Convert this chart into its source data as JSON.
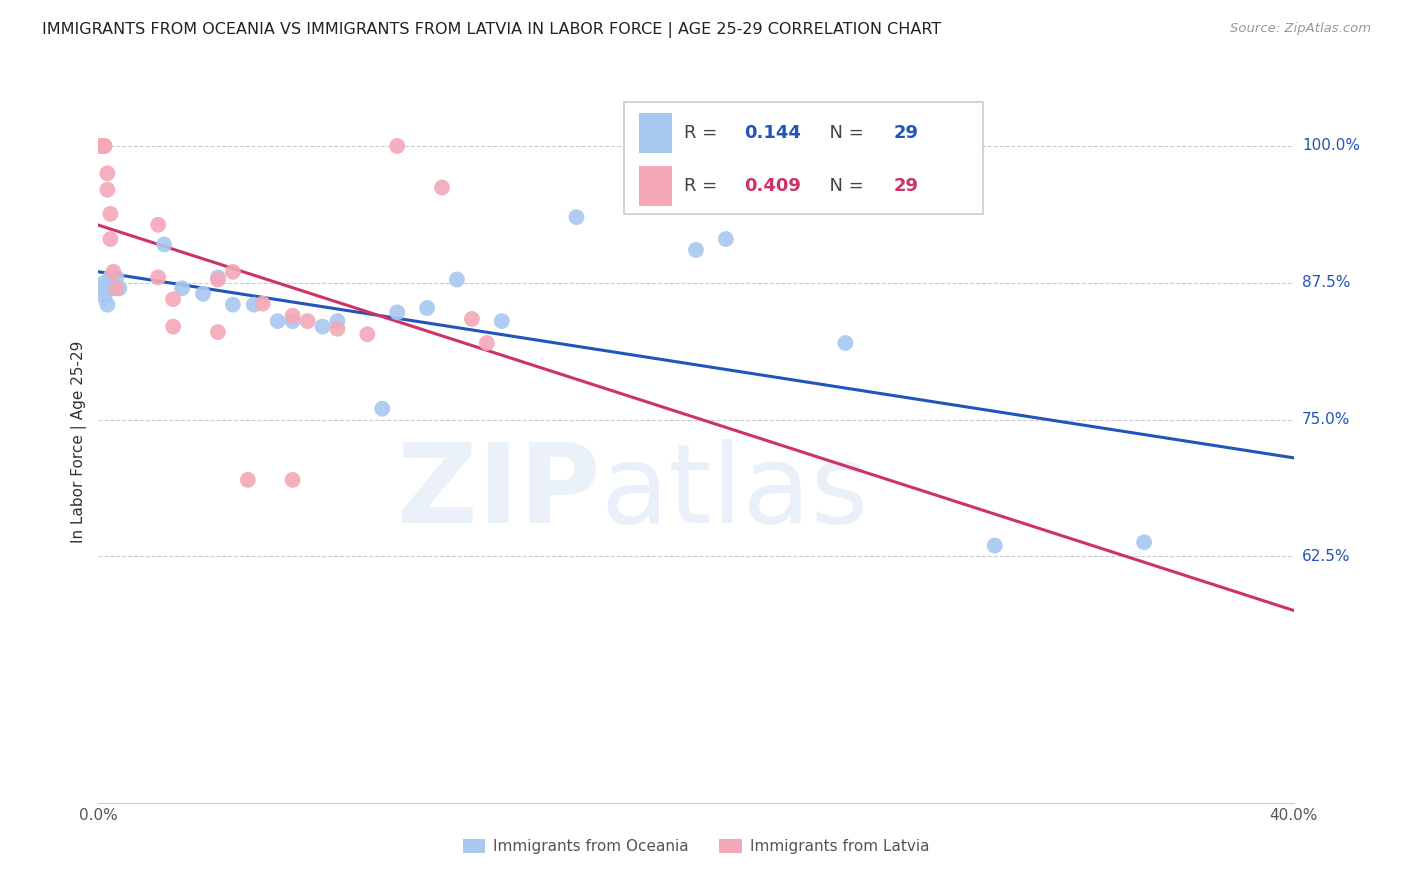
{
  "title": "IMMIGRANTS FROM OCEANIA VS IMMIGRANTS FROM LATVIA IN LABOR FORCE | AGE 25-29 CORRELATION CHART",
  "source": "Source: ZipAtlas.com",
  "ylabel": "In Labor Force | Age 25-29",
  "xlim": [
    0.0,
    0.4
  ],
  "ylim": [
    0.4,
    1.06
  ],
  "yticks": [
    0.625,
    0.75,
    0.875,
    1.0
  ],
  "ytick_labels": [
    "62.5%",
    "75.0%",
    "87.5%",
    "100.0%"
  ],
  "xticks": [
    0.0,
    0.1,
    0.2,
    0.3,
    0.4
  ],
  "xtick_labels": [
    "0.0%",
    "",
    "",
    "",
    "40.0%"
  ],
  "oceania_color": "#a8c8f0",
  "latvia_color": "#f4a8b8",
  "line_oceania_color": "#2255bb",
  "line_latvia_color": "#cc3366",
  "R_oceania": 0.144,
  "N_oceania": 29,
  "R_latvia": 0.409,
  "N_latvia": 29,
  "oceania_x": [
    0.002,
    0.002,
    0.002,
    0.003,
    0.004,
    0.005,
    0.006,
    0.007,
    0.022,
    0.028,
    0.035,
    0.04,
    0.045,
    0.052,
    0.06,
    0.065,
    0.075,
    0.08,
    0.095,
    0.1,
    0.11,
    0.12,
    0.135,
    0.16,
    0.2,
    0.21,
    0.25,
    0.3,
    0.35
  ],
  "oceania_y": [
    0.875,
    0.87,
    0.862,
    0.855,
    0.88,
    0.87,
    0.88,
    0.87,
    0.91,
    0.87,
    0.865,
    0.88,
    0.855,
    0.855,
    0.84,
    0.84,
    0.835,
    0.84,
    0.76,
    0.848,
    0.852,
    0.878,
    0.84,
    0.935,
    0.905,
    0.915,
    0.82,
    0.635,
    0.638
  ],
  "latvia_x": [
    0.001,
    0.001,
    0.001,
    0.002,
    0.002,
    0.003,
    0.003,
    0.004,
    0.004,
    0.005,
    0.006,
    0.02,
    0.025,
    0.04,
    0.045,
    0.055,
    0.065,
    0.07,
    0.08,
    0.09,
    0.1,
    0.115,
    0.125,
    0.13,
    0.02,
    0.025,
    0.04,
    0.05,
    0.065
  ],
  "latvia_y": [
    1.0,
    1.0,
    1.0,
    1.0,
    1.0,
    0.975,
    0.96,
    0.938,
    0.915,
    0.885,
    0.87,
    0.928,
    0.86,
    0.878,
    0.885,
    0.856,
    0.845,
    0.84,
    0.833,
    0.828,
    1.0,
    0.962,
    0.842,
    0.82,
    0.88,
    0.835,
    0.83,
    0.695,
    0.695
  ]
}
